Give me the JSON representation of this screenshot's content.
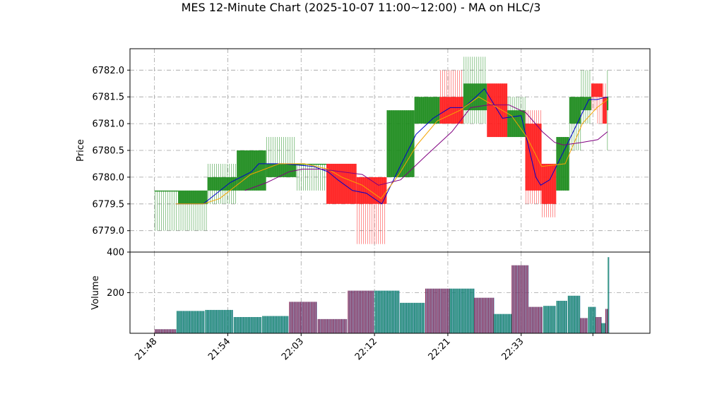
{
  "chart_data": {
    "type": "candlestick",
    "title": "MES 12-Minute Chart (2025-10-07 11:00~12:00) - MA on HLC/3",
    "price_panel": {
      "ylabel": "Price",
      "ylim": [
        6778.6,
        6782.4
      ],
      "yticks": [
        "6779.0",
        "6779.5",
        "6780.0",
        "6780.5",
        "6781.0",
        "6781.5",
        "6782.0"
      ],
      "grid": true,
      "bars": [
        {
          "t": 0.0,
          "w": 2.9,
          "o": 6779.75,
          "h": 6779.75,
          "l": 6779.0,
          "c": 6779.75
        },
        {
          "t": 2.9,
          "w": 3.6,
          "o": 6779.5,
          "h": 6779.75,
          "l": 6779.0,
          "c": 6779.75
        },
        {
          "t": 6.5,
          "w": 3.6,
          "o": 6779.75,
          "h": 6780.25,
          "l": 6779.5,
          "c": 6780.0
        },
        {
          "t": 10.1,
          "w": 3.6,
          "o": 6779.75,
          "h": 6780.5,
          "l": 6779.75,
          "c": 6780.5
        },
        {
          "t": 13.7,
          "w": 3.7,
          "o": 6780.0,
          "h": 6780.75,
          "l": 6780.0,
          "c": 6780.25
        },
        {
          "t": 17.4,
          "w": 3.7,
          "o": 6780.25,
          "h": 6780.25,
          "l": 6779.75,
          "c": 6780.25
        },
        {
          "t": 21.1,
          "w": 3.7,
          "o": 6780.25,
          "h": 6780.25,
          "l": 6779.5,
          "c": 6779.5
        },
        {
          "t": 24.8,
          "w": 3.7,
          "o": 6780.0,
          "h": 6780.0,
          "l": 6778.75,
          "c": 6779.5
        },
        {
          "t": 28.5,
          "w": 3.4,
          "o": 6780.0,
          "h": 6781.25,
          "l": 6780.0,
          "c": 6781.25
        },
        {
          "t": 31.9,
          "w": 3.1,
          "o": 6781.0,
          "h": 6781.5,
          "l": 6781.0,
          "c": 6781.5
        },
        {
          "t": 35.0,
          "w": 2.9,
          "o": 6781.5,
          "h": 6782.0,
          "l": 6781.0,
          "c": 6781.0
        },
        {
          "t": 37.9,
          "w": 2.9,
          "o": 6781.25,
          "h": 6782.25,
          "l": 6781.0,
          "c": 6781.75
        },
        {
          "t": 40.8,
          "w": 2.5,
          "o": 6781.75,
          "h": 6781.75,
          "l": 6780.75,
          "c": 6780.75
        },
        {
          "t": 43.3,
          "w": 2.2,
          "o": 6780.75,
          "h": 6781.5,
          "l": 6780.75,
          "c": 6781.25
        },
        {
          "t": 45.5,
          "w": 2.0,
          "o": 6781.0,
          "h": 6781.25,
          "l": 6779.5,
          "c": 6779.75
        },
        {
          "t": 47.5,
          "w": 1.8,
          "o": 6780.25,
          "h": 6780.25,
          "l": 6779.25,
          "c": 6779.5
        },
        {
          "t": 49.3,
          "w": 1.6,
          "o": 6779.75,
          "h": 6780.75,
          "l": 6779.75,
          "c": 6780.75
        },
        {
          "t": 50.9,
          "w": 1.4,
          "o": 6781.0,
          "h": 6781.5,
          "l": 6780.5,
          "c": 6781.5
        },
        {
          "t": 52.3,
          "w": 1.3,
          "o": 6781.25,
          "h": 6782.0,
          "l": 6781.0,
          "c": 6781.5
        },
        {
          "t": 53.6,
          "w": 0.7,
          "o": 6781.75,
          "h": 6781.75,
          "l": 6781.25,
          "c": 6781.5
        },
        {
          "t": 54.3,
          "w": 0.7,
          "o": 6781.75,
          "h": 6781.75,
          "l": 6781.0,
          "c": 6781.5
        },
        {
          "t": 55.0,
          "w": 0.5,
          "o": 6781.5,
          "h": 6781.75,
          "l": 6781.0,
          "c": 6781.0
        },
        {
          "t": 55.5,
          "w": 0.2,
          "o": 6781.25,
          "h": 6782.0,
          "l": 6780.5,
          "c": 6781.5
        }
      ],
      "ma_series": [
        {
          "color": "#0000cc",
          "points": [
            [
              2.6,
              6779.5
            ],
            [
              6.0,
              6779.5
            ],
            [
              9.3,
              6779.9
            ],
            [
              11.9,
              6780.1
            ],
            [
              12.8,
              6780.25
            ],
            [
              15.8,
              6780.25
            ],
            [
              19.5,
              6780.2
            ],
            [
              21.3,
              6780.1
            ],
            [
              22.5,
              6779.95
            ],
            [
              24.3,
              6779.75
            ],
            [
              26.0,
              6779.7
            ],
            [
              27.9,
              6779.5
            ],
            [
              30.3,
              6780.25
            ],
            [
              32.1,
              6780.8
            ],
            [
              34.2,
              6781.1
            ],
            [
              36.3,
              6781.3
            ],
            [
              38.0,
              6781.3
            ],
            [
              40.5,
              6781.65
            ],
            [
              42.7,
              6781.1
            ],
            [
              45.0,
              6781.15
            ],
            [
              46.8,
              6780.0
            ],
            [
              47.4,
              6779.85
            ],
            [
              48.5,
              6779.95
            ],
            [
              50.6,
              6780.6
            ],
            [
              52.5,
              6781.2
            ],
            [
              53.3,
              6781.45
            ],
            [
              54.3,
              6781.45
            ],
            [
              55.6,
              6781.5
            ]
          ]
        },
        {
          "color": "#f5a400",
          "points": [
            [
              2.6,
              6779.5
            ],
            [
              6.0,
              6779.5
            ],
            [
              8.0,
              6779.6
            ],
            [
              11.8,
              6780.05
            ],
            [
              15.3,
              6780.25
            ],
            [
              18.4,
              6780.25
            ],
            [
              21.3,
              6780.15
            ],
            [
              23.0,
              6780.0
            ],
            [
              25.5,
              6779.85
            ],
            [
              27.8,
              6779.6
            ],
            [
              30.0,
              6780.05
            ],
            [
              32.2,
              6780.6
            ],
            [
              34.7,
              6781.05
            ],
            [
              37.5,
              6781.25
            ],
            [
              39.8,
              6781.5
            ],
            [
              41.5,
              6781.35
            ],
            [
              43.8,
              6781.15
            ],
            [
              45.7,
              6780.75
            ],
            [
              47.5,
              6780.2
            ],
            [
              50.4,
              6780.25
            ],
            [
              52.5,
              6781.0
            ],
            [
              54.3,
              6781.3
            ],
            [
              55.6,
              6781.45
            ]
          ]
        },
        {
          "color": "#800080",
          "points": [
            [
              11.1,
              6779.75
            ],
            [
              13.8,
              6779.9
            ],
            [
              16.5,
              6780.1
            ],
            [
              18.2,
              6780.15
            ],
            [
              20.5,
              6780.15
            ],
            [
              25.5,
              6780.05
            ],
            [
              27.5,
              6779.85
            ],
            [
              30.2,
              6779.95
            ],
            [
              33.3,
              6780.4
            ],
            [
              36.5,
              6780.85
            ],
            [
              38.8,
              6781.3
            ],
            [
              41.0,
              6781.35
            ],
            [
              43.5,
              6781.35
            ],
            [
              45.6,
              6781.2
            ],
            [
              47.6,
              6780.85
            ],
            [
              49.1,
              6780.65
            ],
            [
              50.2,
              6780.6
            ],
            [
              52.5,
              6780.65
            ],
            [
              54.4,
              6780.7
            ],
            [
              55.6,
              6780.85
            ]
          ]
        }
      ]
    },
    "volume_panel": {
      "ylabel": "Volume",
      "ylim": [
        0,
        400
      ],
      "yticks": [
        "200",
        "400"
      ],
      "bars": [
        {
          "t": 0.0,
          "w": 2.7,
          "v": 20,
          "dir": "down"
        },
        {
          "t": 2.7,
          "w": 3.5,
          "v": 110,
          "dir": "up"
        },
        {
          "t": 6.2,
          "w": 3.5,
          "v": 115,
          "dir": "up"
        },
        {
          "t": 9.7,
          "w": 3.5,
          "v": 80,
          "dir": "up"
        },
        {
          "t": 13.2,
          "w": 3.3,
          "v": 85,
          "dir": "up"
        },
        {
          "t": 16.5,
          "w": 3.5,
          "v": 155,
          "dir": "down"
        },
        {
          "t": 20.0,
          "w": 3.7,
          "v": 70,
          "dir": "down"
        },
        {
          "t": 23.7,
          "w": 3.3,
          "v": 210,
          "dir": "down"
        },
        {
          "t": 27.0,
          "w": 3.1,
          "v": 210,
          "dir": "up"
        },
        {
          "t": 30.1,
          "w": 3.1,
          "v": 150,
          "dir": "up"
        },
        {
          "t": 33.2,
          "w": 3.0,
          "v": 220,
          "dir": "down"
        },
        {
          "t": 36.2,
          "w": 3.0,
          "v": 220,
          "dir": "up"
        },
        {
          "t": 39.2,
          "w": 2.4,
          "v": 175,
          "dir": "down"
        },
        {
          "t": 41.6,
          "w": 2.2,
          "v": 95,
          "dir": "up"
        },
        {
          "t": 43.8,
          "w": 2.1,
          "v": 335,
          "dir": "down"
        },
        {
          "t": 45.9,
          "w": 1.8,
          "v": 130,
          "dir": "down"
        },
        {
          "t": 47.7,
          "w": 1.6,
          "v": 135,
          "dir": "up"
        },
        {
          "t": 49.3,
          "w": 1.4,
          "v": 160,
          "dir": "up"
        },
        {
          "t": 50.7,
          "w": 1.5,
          "v": 185,
          "dir": "up"
        },
        {
          "t": 52.2,
          "w": 1.0,
          "v": 75,
          "dir": "down"
        },
        {
          "t": 53.2,
          "w": 0.9,
          "v": 130,
          "dir": "up"
        },
        {
          "t": 54.1,
          "w": 0.7,
          "v": 80,
          "dir": "down"
        },
        {
          "t": 54.8,
          "w": 0.5,
          "v": 50,
          "dir": "up"
        },
        {
          "t": 55.3,
          "w": 0.3,
          "v": 120,
          "dir": "down"
        },
        {
          "t": 55.6,
          "w": 0.2,
          "v": 375,
          "dir": "up"
        }
      ]
    },
    "xaxis": {
      "range": [
        -3.0,
        60.8
      ],
      "ticks": [
        {
          "t": 0.0,
          "label": "21:48"
        },
        {
          "t": 9.0,
          "label": "21:54"
        },
        {
          "t": 18.0,
          "label": "22:03"
        },
        {
          "t": 27.0,
          "label": "22:12"
        },
        {
          "t": 36.0,
          "label": "22:21"
        },
        {
          "t": 45.0,
          "label": "22:33"
        },
        {
          "t": 53.8,
          "label": ""
        }
      ],
      "label_rotation": -45
    },
    "colors": {
      "up": "#1a8a1a",
      "down": "#ff1a1a",
      "volume_up_edge": "#007f5f",
      "volume_down_edge": "#8b2252",
      "grid": "#a0a0a0"
    }
  }
}
